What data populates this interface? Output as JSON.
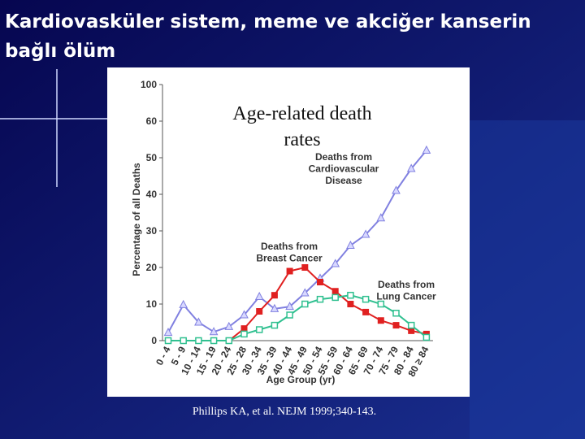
{
  "slide": {
    "title": [
      "Kardiovasküler sistem, meme ve akciğer kanserin",
      "bağlı ölüm"
    ],
    "footer": "Phillips KA, et al. NEJM 1999;340-143."
  },
  "chart_data": {
    "type": "line",
    "overlay": [
      "Age-related death",
      "rates"
    ],
    "ylabel": "Percentage of all Deaths",
    "xlabel": "Age Group (yr)",
    "categories": [
      "0 - 4",
      "5 - 9",
      "10 - 14",
      "15 - 19",
      "20 - 24",
      "25 - 28",
      "30 - 34",
      "35 - 39",
      "40 - 44",
      "45 - 49",
      "50 - 54",
      "55 - 59",
      "60 - 64",
      "65 - 69",
      "70 - 74",
      "75 - 79",
      "80 - 84",
      "80 ≥ 84"
    ],
    "ylim": [
      0,
      100
    ],
    "yticks": [
      0,
      10,
      20,
      30,
      40,
      50,
      60,
      100
    ],
    "series": [
      {
        "label": [
          "Deaths from",
          "Cardiovascular",
          "Disease"
        ],
        "color": "#8080e0",
        "marker": "triangle",
        "values": [
          2.2,
          9.8,
          5,
          2.4,
          3.8,
          7,
          12,
          8.7,
          9.3,
          13,
          17,
          21,
          26,
          29,
          33.5,
          41,
          47,
          52
        ]
      },
      {
        "label": [
          "Deaths from",
          "Breast Cancer"
        ],
        "color": "#e02020",
        "marker": "square",
        "values": [
          null,
          null,
          null,
          null,
          0,
          3.3,
          8,
          12.4,
          19,
          20,
          16,
          13.5,
          10,
          7.8,
          5.5,
          4.2,
          2.7,
          1.8
        ]
      },
      {
        "label": [
          "Deaths from",
          "Lung Cancer"
        ],
        "color": "#30c090",
        "marker": "hollow-square",
        "values": [
          0,
          0,
          0,
          0,
          0,
          1.8,
          3,
          4.2,
          7,
          10,
          11.3,
          11.8,
          12.4,
          11.3,
          10,
          7.5,
          4.2,
          0.9
        ]
      }
    ]
  }
}
